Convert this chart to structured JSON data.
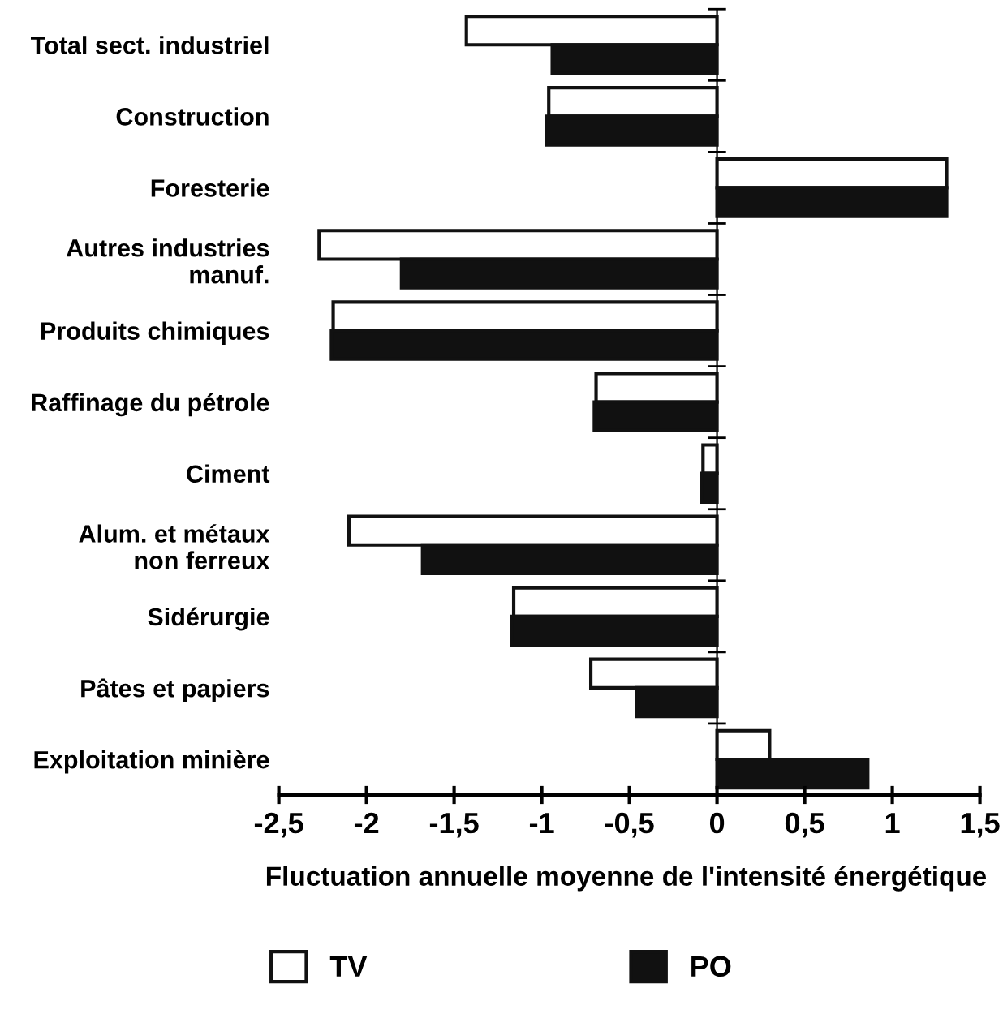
{
  "chart_data": {
    "type": "bar",
    "orientation": "horizontal",
    "categories": [
      "Total sect. industriel",
      "Construction",
      "Foresterie",
      "Autres industries\nmanuf.",
      "Produits chimiques",
      "Raffinage du pétrole",
      "Ciment",
      "Alum. et métaux\nnon ferreux",
      "Sidérurgie",
      "Pâtes et papiers",
      "Exploitation minière"
    ],
    "series": [
      {
        "name": "TV",
        "color": "#ffffff",
        "values": [
          -1.43,
          -0.96,
          1.31,
          -2.27,
          -2.19,
          -0.69,
          -0.08,
          -2.1,
          -1.16,
          -0.72,
          0.3
        ]
      },
      {
        "name": "PO",
        "color": "#111111",
        "values": [
          -0.94,
          -0.97,
          1.31,
          -1.8,
          -2.2,
          -0.7,
          -0.09,
          -1.68,
          -1.17,
          -0.46,
          0.86
        ]
      }
    ],
    "xlabel": "Fluctuation annuelle moyenne de l'intensité énergétique",
    "xlim": [
      -2.5,
      1.5
    ],
    "xticks": [
      {
        "value": -2.5,
        "label": "-2,5"
      },
      {
        "value": -2,
        "label": "-2"
      },
      {
        "value": -1.5,
        "label": "-1,5"
      },
      {
        "value": -1,
        "label": "-1"
      },
      {
        "value": -0.5,
        "label": "-0,5"
      },
      {
        "value": 0,
        "label": "0"
      },
      {
        "value": 0.5,
        "label": "0,5"
      },
      {
        "value": 1,
        "label": "1"
      },
      {
        "value": 1.5,
        "label": "1,5"
      }
    ],
    "legend": "bottom"
  }
}
